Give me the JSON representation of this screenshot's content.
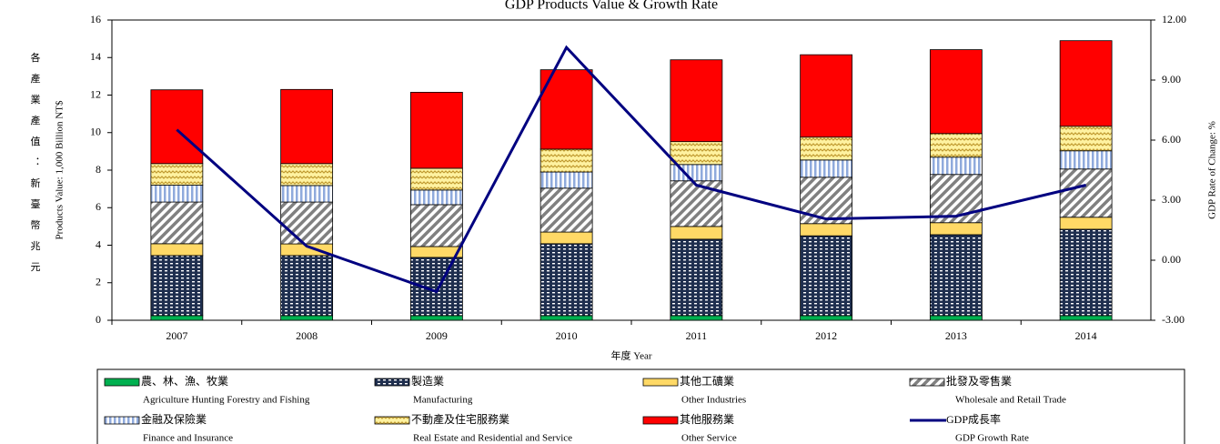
{
  "chart_data": {
    "type": "stacked-bar-line",
    "title": "GDP Products Value & Growth Rate",
    "side_label": "各產業產值：新臺幣兆元",
    "y_label": "Products Value: 1,000 Billion NT$",
    "y2_label": "GDP Rate of Change: %",
    "x_label": "年度 Year",
    "categories": [
      "2007",
      "2008",
      "2009",
      "2010",
      "2011",
      "2012",
      "2013",
      "2014"
    ],
    "ylim": [
      0,
      16
    ],
    "yticks": [
      0,
      2,
      4,
      6,
      8,
      10,
      12,
      14,
      16
    ],
    "y2lim": [
      -3,
      12
    ],
    "y2ticks": [
      {
        "value": -3,
        "label": "-3.00"
      },
      {
        "value": 0,
        "label": "0.00"
      },
      {
        "value": 3,
        "label": "3.00"
      },
      {
        "value": 6,
        "label": "6.00"
      },
      {
        "value": 9,
        "label": "9.00"
      },
      {
        "value": 12,
        "label": "12.00"
      }
    ],
    "series": [
      {
        "name": "農、林、漁、牧業",
        "name_en": "Agriculture Hunting Forestry and Fishing",
        "color": "#00b050",
        "pattern": "solid",
        "values": [
          0.25,
          0.25,
          0.25,
          0.25,
          0.25,
          0.25,
          0.25,
          0.25
        ]
      },
      {
        "name": "製造業",
        "name_en": "Manufacturing",
        "color": "#1f2f4f",
        "pattern": "dots",
        "values": [
          3.2,
          3.2,
          3.1,
          3.83,
          4.07,
          4.25,
          4.31,
          4.6
        ]
      },
      {
        "name": "其他工礦業",
        "name_en": "Other Industries",
        "color": "#ffd966",
        "pattern": "solid",
        "values": [
          0.63,
          0.62,
          0.58,
          0.62,
          0.68,
          0.65,
          0.64,
          0.64
        ]
      },
      {
        "name": "批發及零售業",
        "name_en": "Wholesale and Retail Trade",
        "color": "#808080",
        "pattern": "diagonal",
        "values": [
          2.22,
          2.23,
          2.23,
          2.34,
          2.43,
          2.47,
          2.57,
          2.57
        ]
      },
      {
        "name": "金融及保險業",
        "name_en": "Finance and Insurance",
        "color": "#8faadc",
        "pattern": "vertical",
        "values": [
          0.9,
          0.88,
          0.78,
          0.86,
          0.87,
          0.92,
          0.92,
          0.97
        ]
      },
      {
        "name": "不動產及住宅服務業",
        "name_en": "Real Estate and Residential and Service",
        "color": "#c09a30",
        "pattern": "zigzag",
        "values": [
          1.15,
          1.17,
          1.16,
          1.22,
          1.22,
          1.22,
          1.26,
          1.31
        ]
      },
      {
        "name": "其他服務業",
        "name_en": "Other Service",
        "color": "#ff0000",
        "pattern": "solid",
        "values": [
          3.93,
          3.95,
          4.05,
          4.23,
          4.36,
          4.39,
          4.47,
          4.56
        ]
      },
      {
        "name": "GDP成長率",
        "name_en": "GDP Growth Rate",
        "color": "#000080",
        "type": "line",
        "axis": "y2",
        "values": [
          6.52,
          0.7,
          -1.57,
          10.63,
          3.75,
          2.06,
          2.2,
          3.75
        ]
      }
    ]
  }
}
